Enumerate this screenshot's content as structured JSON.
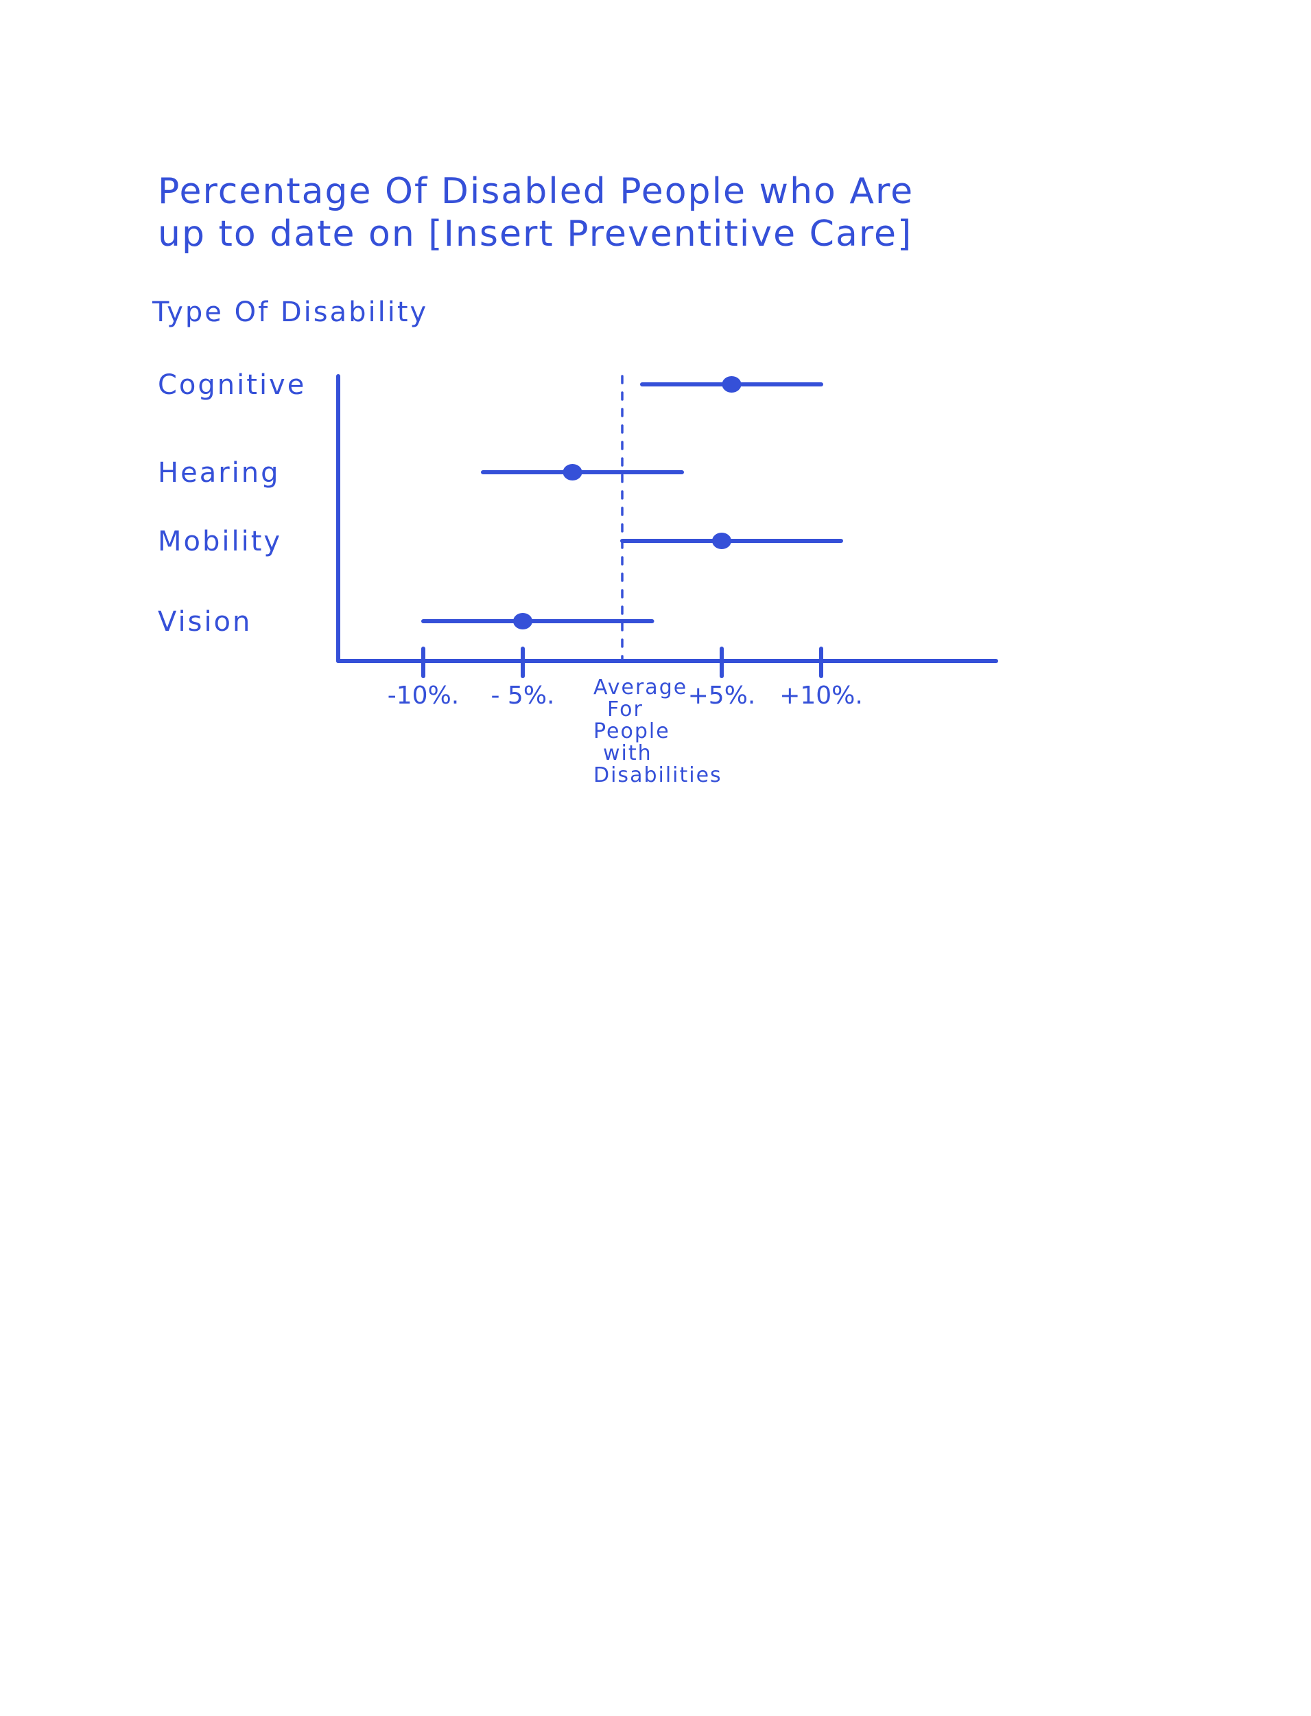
{
  "chart_data": {
    "type": "scatter",
    "title_lines": [
      "Percentage Of Disabled People who Are",
      "up to date on [Insert Preventitive Care]"
    ],
    "ylabel": "Type Of Disability",
    "categories": [
      "Cognitive",
      "Hearing",
      "Mobility",
      "Vision"
    ],
    "points": [
      {
        "category": "Cognitive",
        "value": 5.5,
        "low": 1.0,
        "high": 10.0
      },
      {
        "category": "Hearing",
        "value": -2.5,
        "low": -7.0,
        "high": 3.0
      },
      {
        "category": "Mobility",
        "value": 5.0,
        "low": 0.0,
        "high": 11.0
      },
      {
        "category": "Vision",
        "value": -5.0,
        "low": -10.0,
        "high": 1.5
      }
    ],
    "x_ticks": [
      {
        "value": -10,
        "label": "-10%."
      },
      {
        "value": -5,
        "label": "- 5%."
      },
      {
        "value": 5,
        "label": "+5%."
      },
      {
        "value": 10,
        "label": "+10%."
      }
    ],
    "reference_line": {
      "value": 0,
      "label_lines": [
        "Average",
        "For",
        "People",
        "with",
        "Disabilities"
      ]
    },
    "xlim": [
      -14,
      18
    ],
    "grid": false,
    "color": "#3550d8"
  }
}
